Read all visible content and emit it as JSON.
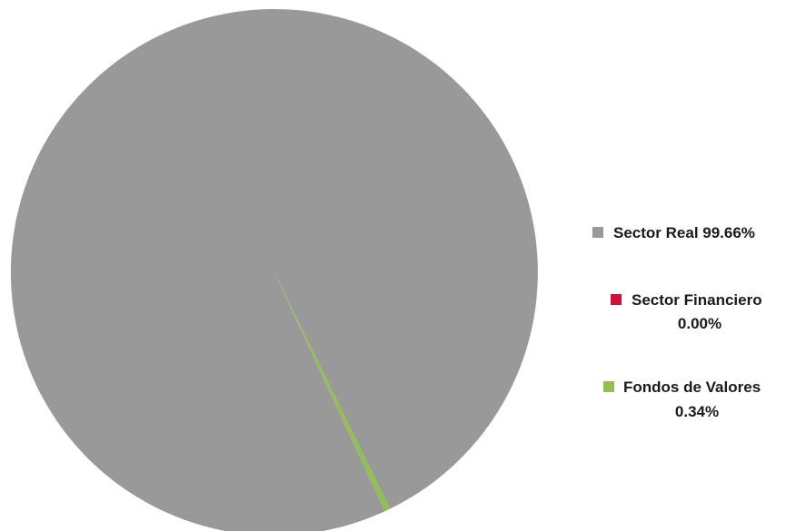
{
  "chart_data": {
    "type": "pie",
    "title": "",
    "categories": [
      "Sector Real",
      "Sector Financiero",
      "Fondos de Valores"
    ],
    "values": [
      99.66,
      0.0,
      0.34
    ],
    "legend": [
      {
        "line1": "Sector Real 99.66%",
        "line2": ""
      },
      {
        "line1": "Sector Financiero",
        "line2": "0.00%"
      },
      {
        "line1": "Fondos de Valores",
        "line2": "0.34%"
      }
    ],
    "colors": [
      "#999999",
      "#d0103a",
      "#92c050"
    ],
    "legend_position": "right"
  }
}
